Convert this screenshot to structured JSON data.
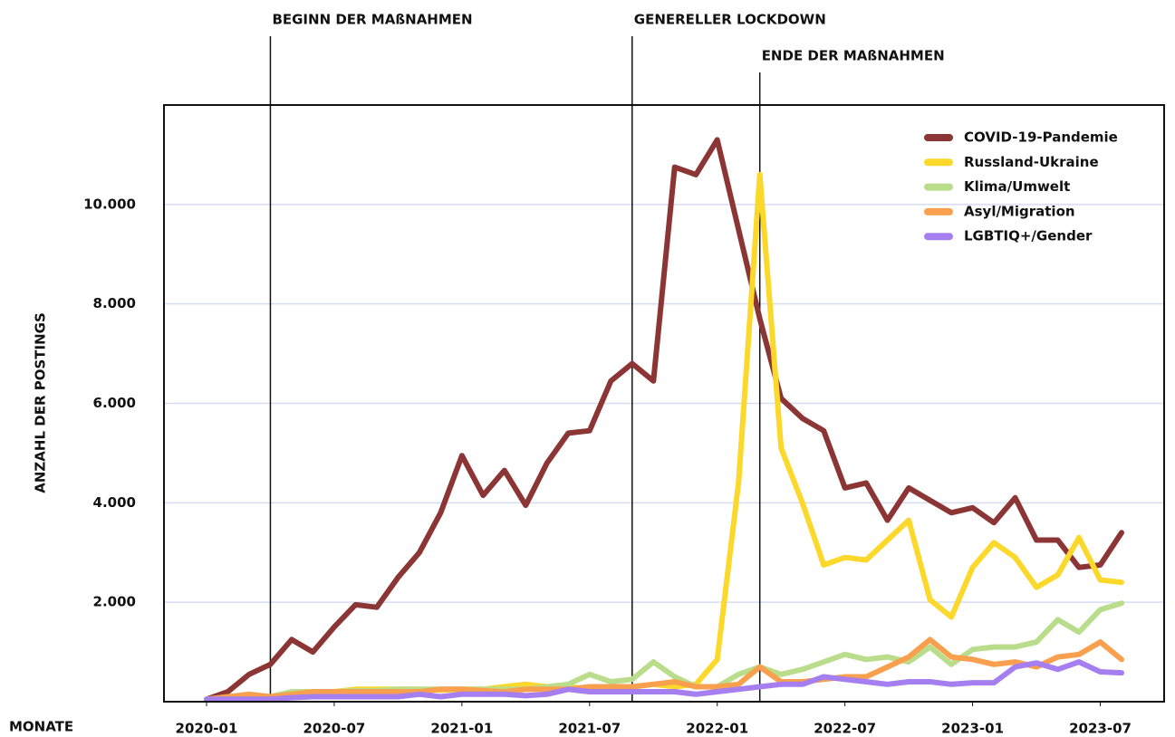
{
  "chart_data": {
    "type": "line",
    "x_label": "MONATE",
    "y_label": "ANZAHL DER POSTINGS",
    "x": [
      "2020-01",
      "2020-02",
      "2020-03",
      "2020-04",
      "2020-05",
      "2020-06",
      "2020-07",
      "2020-08",
      "2020-09",
      "2020-10",
      "2020-11",
      "2020-12",
      "2021-01",
      "2021-02",
      "2021-03",
      "2021-04",
      "2021-05",
      "2021-06",
      "2021-07",
      "2021-08",
      "2021-09",
      "2021-10",
      "2021-11",
      "2021-12",
      "2022-01",
      "2022-02",
      "2022-03",
      "2022-04",
      "2022-05",
      "2022-06",
      "2022-07",
      "2022-08",
      "2022-09",
      "2022-10",
      "2022-11",
      "2022-12",
      "2023-01",
      "2023-02",
      "2023-03",
      "2023-04",
      "2023-05",
      "2023-06",
      "2023-07",
      "2023-08"
    ],
    "series": [
      {
        "name": "COVID-19-Pandemie",
        "color": "#8b3535",
        "values": [
          50,
          200,
          550,
          750,
          1250,
          1000,
          1500,
          1950,
          1900,
          2500,
          3000,
          3800,
          4950,
          4150,
          4650,
          3950,
          4800,
          5400,
          5450,
          6450,
          6800,
          6450,
          10750,
          10600,
          11300,
          9500,
          7700,
          6100,
          5700,
          5450,
          4300,
          4400,
          3650,
          4300,
          4050,
          3800,
          3900,
          3600,
          4100,
          3250,
          3250,
          2700,
          2750,
          3400
        ]
      },
      {
        "name": "Russland-Ukraine",
        "color": "#fbd82a",
        "values": [
          50,
          80,
          120,
          100,
          150,
          180,
          200,
          250,
          250,
          250,
          250,
          230,
          250,
          250,
          300,
          350,
          300,
          300,
          250,
          250,
          300,
          350,
          300,
          350,
          850,
          4400,
          10600,
          5100,
          4000,
          2750,
          2900,
          2850,
          3250,
          3650,
          2050,
          1700,
          2700,
          3200,
          2900,
          2300,
          2550,
          3300,
          2450,
          2400
        ]
      },
      {
        "name": "Klima/Umwelt",
        "color": "#b9dd8a",
        "values": [
          50,
          80,
          100,
          100,
          200,
          200,
          200,
          220,
          220,
          250,
          250,
          250,
          250,
          250,
          250,
          250,
          300,
          350,
          550,
          400,
          450,
          800,
          500,
          300,
          300,
          550,
          700,
          550,
          650,
          800,
          950,
          850,
          900,
          800,
          1100,
          750,
          1050,
          1100,
          1100,
          1200,
          1650,
          1400,
          1850,
          1980
        ]
      },
      {
        "name": "Asyl/Migration",
        "color": "#f9a04e",
        "values": [
          50,
          100,
          150,
          100,
          150,
          200,
          200,
          200,
          200,
          200,
          200,
          250,
          250,
          220,
          200,
          250,
          250,
          250,
          300,
          300,
          300,
          350,
          400,
          300,
          300,
          350,
          700,
          400,
          400,
          450,
          500,
          500,
          700,
          900,
          1250,
          900,
          850,
          750,
          800,
          700,
          900,
          950,
          1200,
          850
        ]
      },
      {
        "name": "LGBTIQ+/Gender",
        "color": "#a57ef0",
        "values": [
          50,
          50,
          50,
          50,
          80,
          100,
          100,
          100,
          100,
          100,
          150,
          100,
          150,
          150,
          150,
          120,
          150,
          250,
          200,
          200,
          200,
          200,
          200,
          150,
          200,
          250,
          300,
          350,
          350,
          500,
          450,
          400,
          350,
          400,
          400,
          350,
          380,
          380,
          700,
          780,
          650,
          800,
          600,
          580
        ]
      }
    ],
    "xlim": [
      "2019-11",
      "2023-10"
    ],
    "xticks": [
      "2020-01",
      "2020-07",
      "2021-01",
      "2021-07",
      "2022-01",
      "2022-07",
      "2023-01",
      "2023-07"
    ],
    "ylim": [
      0,
      12000
    ],
    "yticks": [
      {
        "value": 2000,
        "label": "2.000"
      },
      {
        "value": 4000,
        "label": "4.000"
      },
      {
        "value": 6000,
        "label": "6.000"
      },
      {
        "value": 8000,
        "label": "8.000"
      },
      {
        "value": 10000,
        "label": "10.000"
      }
    ],
    "grid": true,
    "legend": "upper right",
    "annotations": [
      {
        "text": "BEGINN DER MAßNAHMEN",
        "x": "2020-04"
      },
      {
        "text": "GENERELLER LOCKDOWN",
        "x": "2021-09"
      },
      {
        "text": "ENDE DER MAßNAHMEN",
        "x": "2022-03"
      }
    ]
  }
}
